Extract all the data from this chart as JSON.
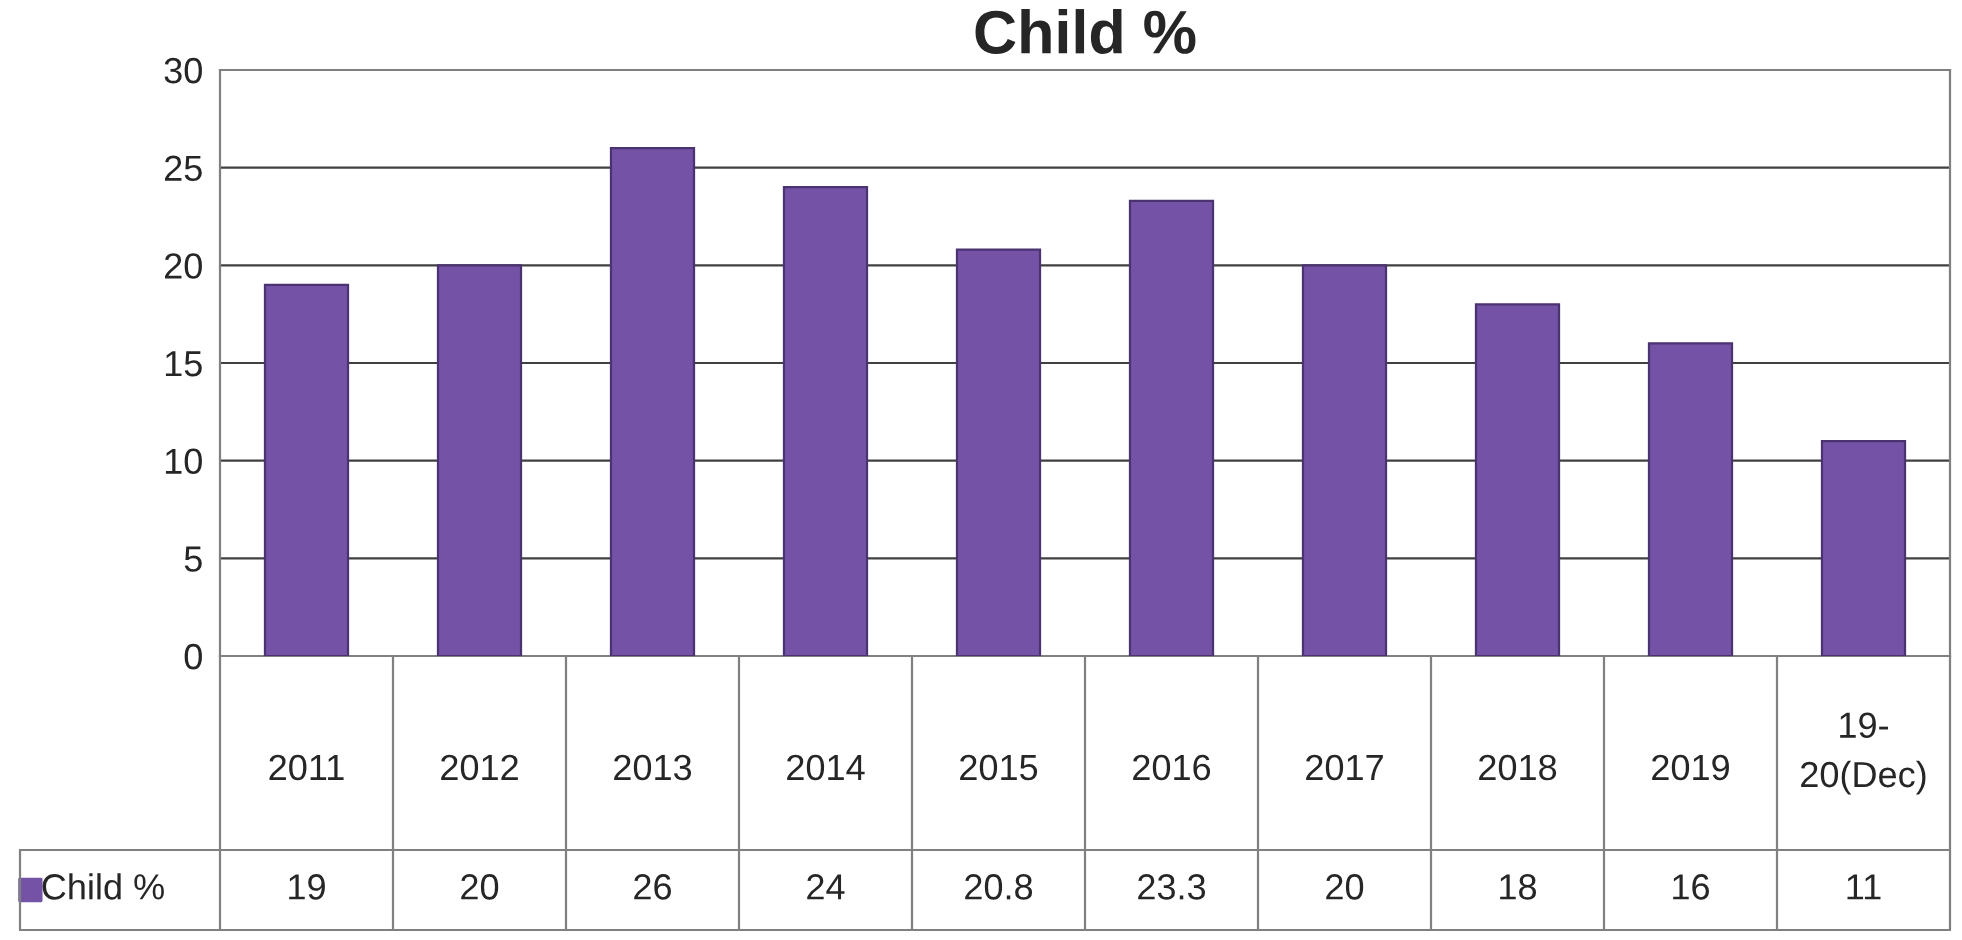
{
  "chart_data": {
    "type": "bar",
    "title": "Child %",
    "categories": [
      "2011",
      "2012",
      "2013",
      "2014",
      "2015",
      "2016",
      "2017",
      "2018",
      "2019",
      "19-20(Dec)"
    ],
    "series": [
      {
        "name": "Child %",
        "color": "#7453a6",
        "values": [
          19,
          20,
          26,
          24,
          20.8,
          23.3,
          20,
          18,
          16,
          11
        ]
      }
    ],
    "ylim": [
      0,
      30
    ],
    "yticks": [
      0,
      5,
      10,
      15,
      20,
      25,
      30
    ],
    "grid": "y",
    "data_labels": true
  }
}
